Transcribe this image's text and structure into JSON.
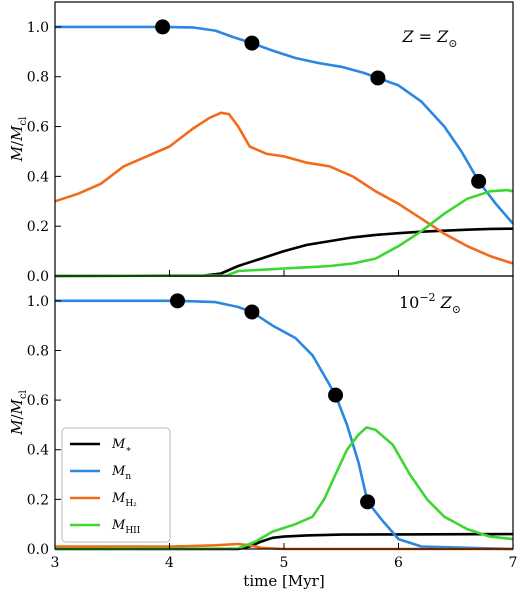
{
  "chart_data": [
    {
      "type": "line",
      "panel": "top",
      "annotation": "Z = Z⊙",
      "xlabel": "",
      "ylabel": "M / Mcl",
      "xlim": [
        3,
        7
      ],
      "ylim": [
        0,
        1.1
      ],
      "x_ticks": [
        "3",
        "4",
        "5",
        "6",
        "7"
      ],
      "y_ticks": [
        "0.0",
        "0.2",
        "0.4",
        "0.6",
        "0.8",
        "1.0"
      ],
      "series": [
        {
          "key": "mstar",
          "color": "#000000",
          "points": [
            [
              3,
              0
            ],
            [
              4.3,
              0.002
            ],
            [
              4.45,
              0.01
            ],
            [
              4.6,
              0.04
            ],
            [
              4.8,
              0.07
            ],
            [
              5.0,
              0.1
            ],
            [
              5.2,
              0.125
            ],
            [
              5.4,
              0.14
            ],
            [
              5.6,
              0.155
            ],
            [
              5.8,
              0.165
            ],
            [
              6.0,
              0.172
            ],
            [
              6.2,
              0.178
            ],
            [
              6.4,
              0.182
            ],
            [
              6.6,
              0.186
            ],
            [
              6.8,
              0.189
            ],
            [
              7.0,
              0.19
            ]
          ]
        },
        {
          "key": "mn",
          "color": "#2b87e0",
          "points": [
            [
              3,
              1.0
            ],
            [
              3.5,
              1.0
            ],
            [
              3.94,
              1.0
            ],
            [
              4.2,
              0.998
            ],
            [
              4.4,
              0.985
            ],
            [
              4.55,
              0.96
            ],
            [
              4.72,
              0.935
            ],
            [
              4.9,
              0.905
            ],
            [
              5.1,
              0.875
            ],
            [
              5.3,
              0.855
            ],
            [
              5.5,
              0.84
            ],
            [
              5.7,
              0.815
            ],
            [
              5.82,
              0.795
            ],
            [
              6.0,
              0.765
            ],
            [
              6.2,
              0.7
            ],
            [
              6.4,
              0.6
            ],
            [
              6.55,
              0.5
            ],
            [
              6.7,
              0.38
            ],
            [
              6.85,
              0.29
            ],
            [
              7.0,
              0.21
            ]
          ]
        },
        {
          "key": "mh2",
          "color": "#f26a1b",
          "points": [
            [
              3,
              0.3
            ],
            [
              3.2,
              0.33
            ],
            [
              3.4,
              0.37
            ],
            [
              3.6,
              0.44
            ],
            [
              3.8,
              0.48
            ],
            [
              4.0,
              0.52
            ],
            [
              4.2,
              0.59
            ],
            [
              4.35,
              0.635
            ],
            [
              4.45,
              0.655
            ],
            [
              4.52,
              0.65
            ],
            [
              4.6,
              0.6
            ],
            [
              4.7,
              0.52
            ],
            [
              4.85,
              0.49
            ],
            [
              5.0,
              0.48
            ],
            [
              5.2,
              0.455
            ],
            [
              5.4,
              0.44
            ],
            [
              5.6,
              0.4
            ],
            [
              5.8,
              0.34
            ],
            [
              6.0,
              0.29
            ],
            [
              6.2,
              0.23
            ],
            [
              6.4,
              0.17
            ],
            [
              6.6,
              0.12
            ],
            [
              6.8,
              0.08
            ],
            [
              7.0,
              0.05
            ]
          ]
        },
        {
          "key": "mhii",
          "color": "#3ed630",
          "points": [
            [
              3,
              0
            ],
            [
              4.5,
              0.002
            ],
            [
              4.6,
              0.02
            ],
            [
              4.8,
              0.025
            ],
            [
              5.0,
              0.03
            ],
            [
              5.2,
              0.035
            ],
            [
              5.4,
              0.04
            ],
            [
              5.6,
              0.05
            ],
            [
              5.8,
              0.07
            ],
            [
              6.0,
              0.12
            ],
            [
              6.2,
              0.18
            ],
            [
              6.4,
              0.25
            ],
            [
              6.6,
              0.31
            ],
            [
              6.8,
              0.34
            ],
            [
              6.95,
              0.345
            ],
            [
              7.0,
              0.34
            ]
          ]
        }
      ],
      "markers": [
        [
          3.94,
          1.0
        ],
        [
          4.72,
          0.935
        ],
        [
          5.82,
          0.795
        ],
        [
          6.7,
          0.38
        ]
      ]
    },
    {
      "type": "line",
      "panel": "bottom",
      "annotation": "10⁻² Z⊙",
      "xlabel": "time [Myr]",
      "ylabel": "M / Mcl",
      "xlim": [
        3,
        7
      ],
      "ylim": [
        0,
        1.1
      ],
      "x_ticks": [
        "3",
        "4",
        "5",
        "6",
        "7"
      ],
      "y_ticks": [
        "0.0",
        "0.2",
        "0.4",
        "0.6",
        "0.8",
        "1.0"
      ],
      "series": [
        {
          "key": "mstar",
          "color": "#000000",
          "points": [
            [
              3,
              0
            ],
            [
              4.6,
              0
            ],
            [
              4.7,
              0.01
            ],
            [
              4.8,
              0.03
            ],
            [
              4.9,
              0.045
            ],
            [
              5.0,
              0.05
            ],
            [
              5.2,
              0.055
            ],
            [
              5.5,
              0.058
            ],
            [
              6.0,
              0.059
            ],
            [
              7.0,
              0.06
            ]
          ]
        },
        {
          "key": "mn",
          "color": "#2b87e0",
          "points": [
            [
              3,
              1.0
            ],
            [
              3.5,
              1.0
            ],
            [
              4.07,
              1.0
            ],
            [
              4.4,
              0.995
            ],
            [
              4.6,
              0.975
            ],
            [
              4.72,
              0.955
            ],
            [
              4.9,
              0.9
            ],
            [
              5.1,
              0.85
            ],
            [
              5.25,
              0.78
            ],
            [
              5.35,
              0.7
            ],
            [
              5.45,
              0.62
            ],
            [
              5.55,
              0.5
            ],
            [
              5.65,
              0.35
            ],
            [
              5.73,
              0.19
            ],
            [
              5.85,
              0.12
            ],
            [
              6.0,
              0.04
            ],
            [
              6.2,
              0.01
            ],
            [
              7.0,
              0.0
            ]
          ]
        },
        {
          "key": "mh2",
          "color": "#f26a1b",
          "points": [
            [
              3,
              0.01
            ],
            [
              3.5,
              0.01
            ],
            [
              4.0,
              0.01
            ],
            [
              4.2,
              0.012
            ],
            [
              4.4,
              0.015
            ],
            [
              4.6,
              0.02
            ],
            [
              4.7,
              0.015
            ],
            [
              4.8,
              0.005
            ],
            [
              5.0,
              0
            ],
            [
              7.0,
              0
            ]
          ]
        },
        {
          "key": "mhii",
          "color": "#3ed630",
          "points": [
            [
              3,
              0
            ],
            [
              4.6,
              0.002
            ],
            [
              4.75,
              0.03
            ],
            [
              4.9,
              0.07
            ],
            [
              5.1,
              0.1
            ],
            [
              5.25,
              0.13
            ],
            [
              5.35,
              0.2
            ],
            [
              5.45,
              0.3
            ],
            [
              5.55,
              0.4
            ],
            [
              5.65,
              0.46
            ],
            [
              5.72,
              0.49
            ],
            [
              5.8,
              0.48
            ],
            [
              5.95,
              0.42
            ],
            [
              6.1,
              0.3
            ],
            [
              6.25,
              0.2
            ],
            [
              6.4,
              0.13
            ],
            [
              6.6,
              0.08
            ],
            [
              6.8,
              0.05
            ],
            [
              7.0,
              0.04
            ]
          ]
        }
      ],
      "markers": [
        [
          4.07,
          1.0
        ],
        [
          4.72,
          0.955
        ],
        [
          5.45,
          0.62
        ],
        [
          5.73,
          0.19
        ]
      ]
    }
  ],
  "legend": {
    "placement": "lower-left of bottom panel",
    "entries": [
      {
        "key": "mstar",
        "label": "M*",
        "color": "#000000"
      },
      {
        "key": "mn",
        "label": "Mn",
        "color": "#2b87e0"
      },
      {
        "key": "mh2",
        "label": "MH2",
        "color": "#f26a1b"
      },
      {
        "key": "mhii",
        "label": "MHII",
        "color": "#3ed630"
      }
    ]
  }
}
